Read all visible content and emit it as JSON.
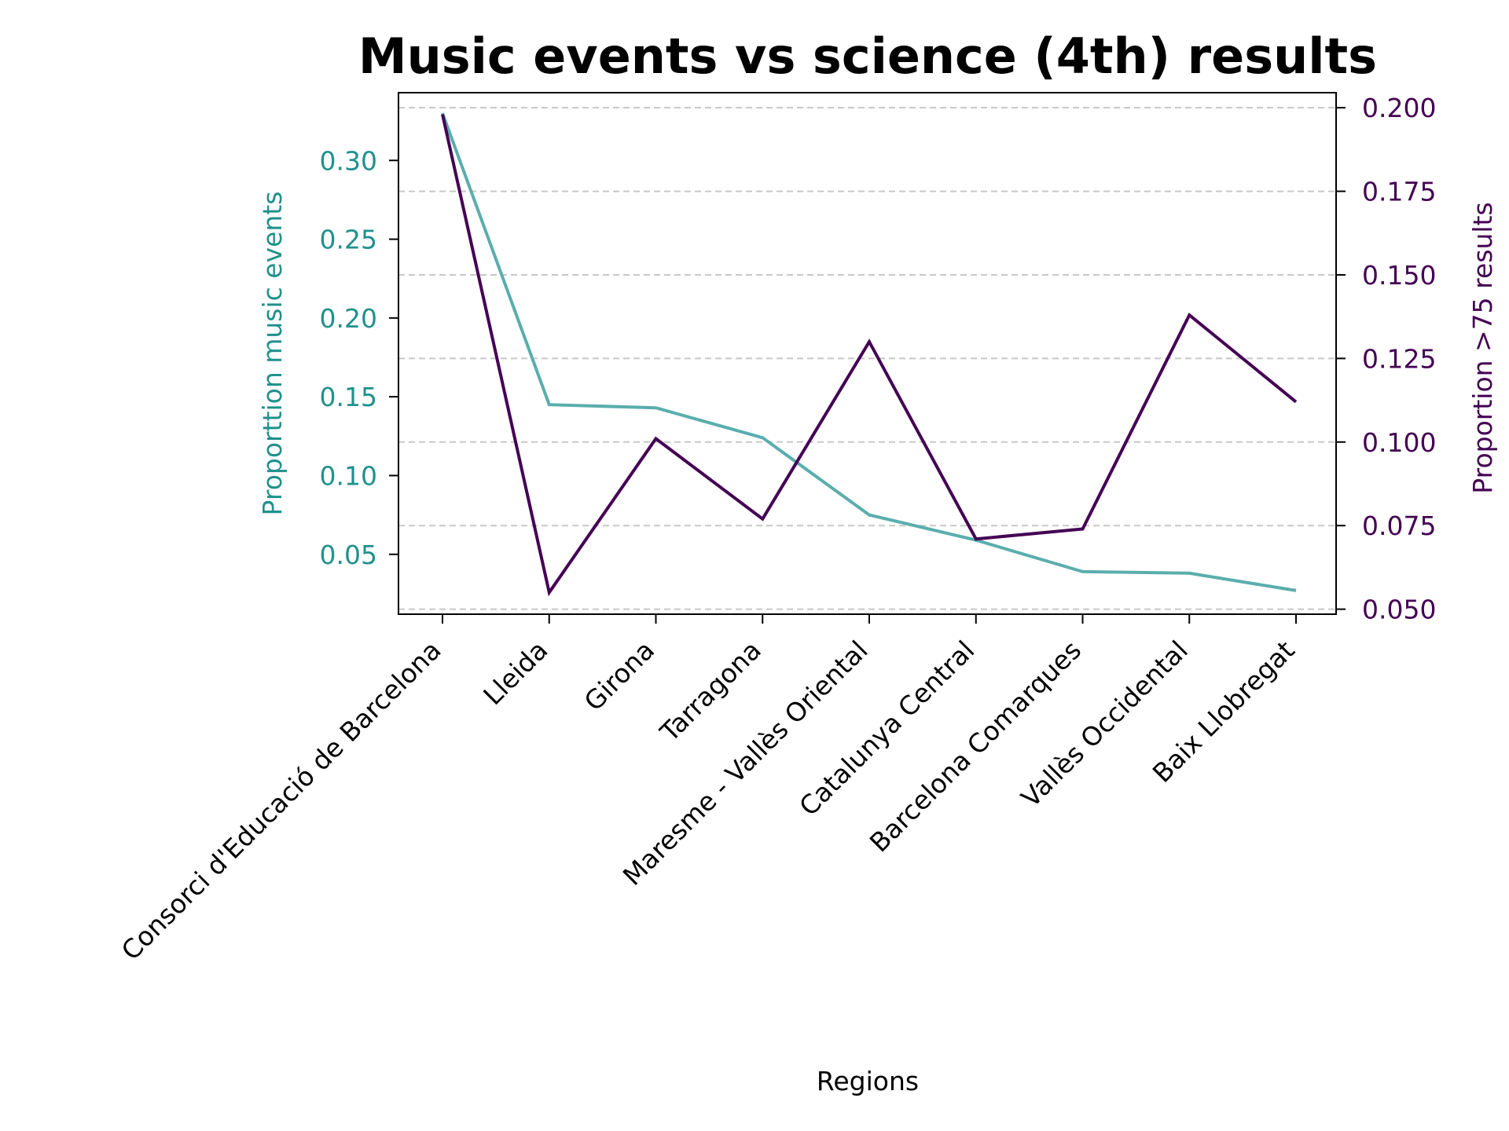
{
  "chart_data": {
    "type": "line",
    "title": "Music events vs science (4th) results",
    "xlabel": "Regions",
    "categories": [
      "Consorci d'Educació de Barcelona",
      "Lleida",
      "Girona",
      "Tarragona",
      "Maresme - Vallès Oriental",
      "Catalunya Central",
      "Barcelona Comarques",
      "Vallès Occidental",
      "Baix Llobregat"
    ],
    "left_axis": {
      "label": "Proporttion music events",
      "color": "#21918c",
      "ylim": [
        0.012,
        0.343
      ],
      "ticks": [
        "0.05",
        "0.10",
        "0.15",
        "0.20",
        "0.25",
        "0.30"
      ]
    },
    "right_axis": {
      "label": "Proportion >75 results",
      "color": "#440154",
      "ylim": [
        0.0485,
        0.2045
      ],
      "ticks": [
        "0.050",
        "0.075",
        "0.100",
        "0.125",
        "0.150",
        "0.175",
        "0.200"
      ]
    },
    "series": [
      {
        "axis": "left",
        "color": "#5aaead",
        "values": [
          0.33,
          0.145,
          0.143,
          0.124,
          0.075,
          0.059,
          0.039,
          0.038,
          0.027
        ]
      },
      {
        "axis": "right",
        "color": "#440154",
        "values": [
          0.198,
          0.055,
          0.101,
          0.077,
          0.13,
          0.071,
          0.074,
          0.138,
          0.112
        ]
      }
    ],
    "grid": "horizontal dashed (right axis ticks)",
    "legend": "none"
  }
}
